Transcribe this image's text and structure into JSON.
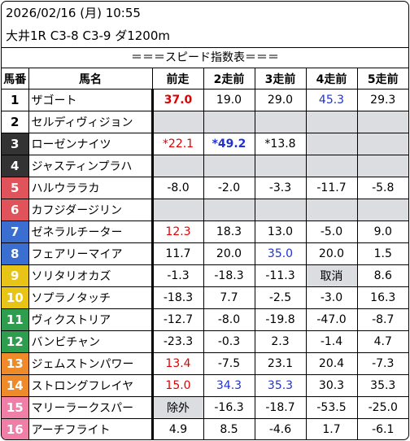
{
  "header": {
    "datetime": "2026/02/16 (月) 10:55",
    "race": "大井1R C3-8 C3-9 ダ1200m"
  },
  "table_title": "＝＝＝スピード指数表＝＝＝",
  "columns": [
    "馬番",
    "馬名",
    "前走",
    "2走前",
    "3走前",
    "4走前",
    "5走前"
  ],
  "colors": {
    "gray_cell": "#dcdde0",
    "red_text": "#e10000",
    "blue_text": "#2233cc"
  },
  "horses": [
    {
      "no": "1",
      "name": "ザゴート",
      "bg": "#ffffff",
      "fg": "#000000",
      "runs": [
        {
          "t": "37.0",
          "c": "red",
          "b": true
        },
        {
          "t": "19.0"
        },
        {
          "t": "29.0"
        },
        {
          "t": "45.3",
          "c": "blue"
        },
        {
          "t": "29.3"
        }
      ]
    },
    {
      "no": "2",
      "name": "セルディヴィジョン",
      "bg": "#ffffff",
      "fg": "#000000",
      "runs": [
        {
          "t": "",
          "g": true
        },
        {
          "t": "",
          "g": true
        },
        {
          "t": "",
          "g": true
        },
        {
          "t": "",
          "g": true
        },
        {
          "t": "",
          "g": true
        }
      ]
    },
    {
      "no": "3",
      "name": "ローゼンナイツ",
      "bg": "#333333",
      "fg": "#ffffff",
      "runs": [
        {
          "t": "*22.1",
          "c": "red"
        },
        {
          "t": "*49.2",
          "c": "blue",
          "b": true
        },
        {
          "t": "*13.8"
        },
        {
          "t": "",
          "g": true
        },
        {
          "t": "",
          "g": true
        }
      ]
    },
    {
      "no": "4",
      "name": "ジャスティンプラハ",
      "bg": "#333333",
      "fg": "#ffffff",
      "runs": [
        {
          "t": "",
          "g": true
        },
        {
          "t": "",
          "g": true
        },
        {
          "t": "",
          "g": true
        },
        {
          "t": "",
          "g": true
        },
        {
          "t": "",
          "g": true
        }
      ]
    },
    {
      "no": "5",
      "name": "ハルウララカ",
      "bg": "#e0535a",
      "fg": "#ffffff",
      "runs": [
        {
          "t": "-8.0"
        },
        {
          "t": "-2.0"
        },
        {
          "t": "-3.3"
        },
        {
          "t": "-11.7"
        },
        {
          "t": "-5.8"
        }
      ]
    },
    {
      "no": "6",
      "name": "カフジダージリン",
      "bg": "#e0535a",
      "fg": "#ffffff",
      "runs": [
        {
          "t": "",
          "g": true
        },
        {
          "t": "",
          "g": true
        },
        {
          "t": "",
          "g": true
        },
        {
          "t": "",
          "g": true
        },
        {
          "t": "",
          "g": true
        }
      ]
    },
    {
      "no": "7",
      "name": "ゼネラルチーター",
      "bg": "#3a6fd1",
      "fg": "#ffffff",
      "runs": [
        {
          "t": "12.3",
          "c": "red"
        },
        {
          "t": "18.3"
        },
        {
          "t": "13.0"
        },
        {
          "t": "-5.0"
        },
        {
          "t": "9.0"
        }
      ]
    },
    {
      "no": "8",
      "name": "フェアリーマイア",
      "bg": "#3a6fd1",
      "fg": "#ffffff",
      "runs": [
        {
          "t": "11.7"
        },
        {
          "t": "20.0"
        },
        {
          "t": "35.0",
          "c": "blue"
        },
        {
          "t": "20.0"
        },
        {
          "t": "1.5"
        }
      ]
    },
    {
      "no": "9",
      "name": "ソリタリオカズ",
      "bg": "#e8c416",
      "fg": "#ffffff",
      "runs": [
        {
          "t": "-1.3"
        },
        {
          "t": "-18.3"
        },
        {
          "t": "-11.3"
        },
        {
          "t": "取消",
          "g": true
        },
        {
          "t": "8.6"
        }
      ]
    },
    {
      "no": "10",
      "name": "ソプラノタッチ",
      "bg": "#e8c416",
      "fg": "#ffffff",
      "runs": [
        {
          "t": "-18.3"
        },
        {
          "t": "7.7"
        },
        {
          "t": "-2.5"
        },
        {
          "t": "-3.0"
        },
        {
          "t": "16.3"
        }
      ]
    },
    {
      "no": "11",
      "name": "ヴィクストリア",
      "bg": "#2e9e4e",
      "fg": "#ffffff",
      "runs": [
        {
          "t": "-12.7"
        },
        {
          "t": "-8.0"
        },
        {
          "t": "-19.8"
        },
        {
          "t": "-47.0"
        },
        {
          "t": "-8.7"
        }
      ]
    },
    {
      "no": "12",
      "name": "バンビチャン",
      "bg": "#2e9e4e",
      "fg": "#ffffff",
      "runs": [
        {
          "t": "-23.3"
        },
        {
          "t": "-0.3"
        },
        {
          "t": "2.3"
        },
        {
          "t": "-1.4"
        },
        {
          "t": "4.7"
        }
      ]
    },
    {
      "no": "13",
      "name": "ジェムストンパワー",
      "bg": "#ee8a2a",
      "fg": "#ffffff",
      "runs": [
        {
          "t": "13.4",
          "c": "red"
        },
        {
          "t": "-7.5"
        },
        {
          "t": "23.1"
        },
        {
          "t": "20.4"
        },
        {
          "t": "-7.3"
        }
      ]
    },
    {
      "no": "14",
      "name": "ストロングフレイヤ",
      "bg": "#ee8a2a",
      "fg": "#ffffff",
      "runs": [
        {
          "t": "15.0",
          "c": "red"
        },
        {
          "t": "34.3",
          "c": "blue"
        },
        {
          "t": "35.3",
          "c": "blue"
        },
        {
          "t": "30.3"
        },
        {
          "t": "35.3"
        }
      ]
    },
    {
      "no": "15",
      "name": "マリーラークスパー",
      "bg": "#f07fa8",
      "fg": "#ffffff",
      "runs": [
        {
          "t": "除外",
          "g": true
        },
        {
          "t": "-16.3"
        },
        {
          "t": "-18.7"
        },
        {
          "t": "-53.5"
        },
        {
          "t": "-25.0"
        }
      ]
    },
    {
      "no": "16",
      "name": "アーチフライト",
      "bg": "#f07fa8",
      "fg": "#ffffff",
      "runs": [
        {
          "t": "4.9"
        },
        {
          "t": "8.5"
        },
        {
          "t": "-4.6"
        },
        {
          "t": "1.7"
        },
        {
          "t": "-6.1"
        }
      ]
    }
  ]
}
